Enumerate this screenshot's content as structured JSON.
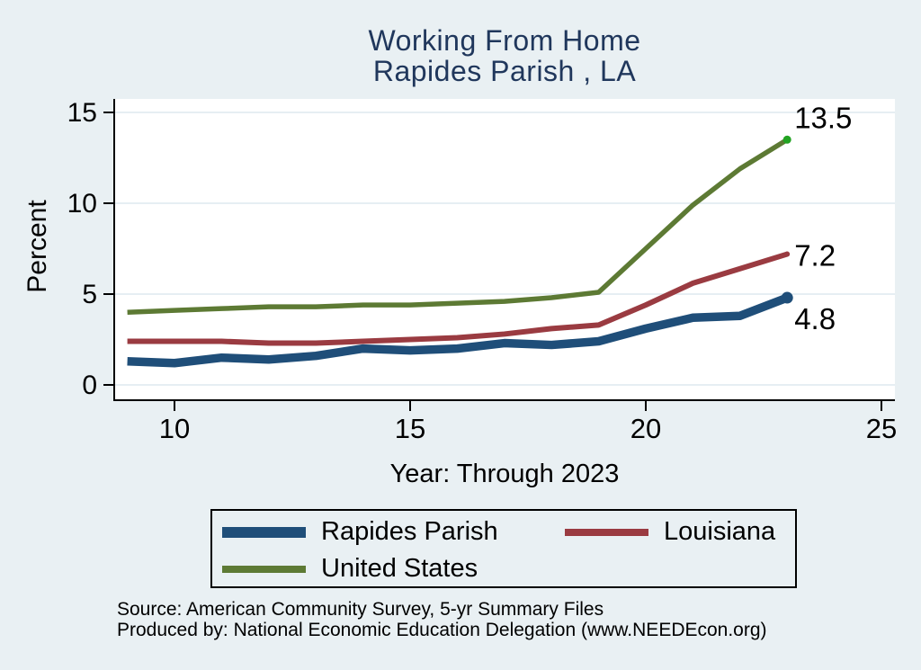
{
  "colors": {
    "page_background": "#e9f0f3",
    "plot_background": "#ffffff",
    "gridline": "#dde9ef",
    "axis": "#000000",
    "title_text": "#20375c",
    "label_text": "#000000"
  },
  "chart_data": {
    "type": "line",
    "title": "Working From Home",
    "subtitle": "Rapides Parish , LA",
    "xlabel": "Year: Through 2023",
    "ylabel": "Percent",
    "x": [
      9,
      10,
      11,
      12,
      13,
      14,
      15,
      16,
      17,
      18,
      19,
      20,
      21,
      22,
      23
    ],
    "xticks": [
      10,
      15,
      20,
      25
    ],
    "yticks": [
      0,
      5,
      10,
      15
    ],
    "xlim": [
      8.7,
      25.3
    ],
    "ylim": [
      0,
      15
    ],
    "grid": "horizontal",
    "legend_position": "bottom",
    "series": [
      {
        "name": "Rapides Parish",
        "color": "#1f4e79",
        "width": 9.5,
        "values": [
          1.3,
          1.2,
          1.5,
          1.4,
          1.6,
          2.0,
          1.9,
          2.0,
          2.3,
          2.2,
          2.4,
          3.1,
          3.7,
          3.8,
          4.8
        ],
        "end_label": "4.8",
        "end_marker": "dot",
        "marker_color": "#1f4e79",
        "marker_radius": 6.5
      },
      {
        "name": "Louisiana",
        "color": "#9a3b41",
        "width": 6,
        "values": [
          2.4,
          2.4,
          2.4,
          2.3,
          2.3,
          2.4,
          2.5,
          2.6,
          2.8,
          3.1,
          3.3,
          4.4,
          5.6,
          6.4,
          7.2
        ],
        "end_label": "7.2",
        "end_marker": "dot",
        "marker_color": "#9a3b41",
        "marker_radius": 3
      },
      {
        "name": "United States",
        "color": "#5d7a34",
        "width": 5.5,
        "values": [
          4.0,
          4.1,
          4.2,
          4.3,
          4.3,
          4.4,
          4.4,
          4.5,
          4.6,
          4.8,
          5.1,
          7.5,
          9.9,
          11.9,
          13.5
        ],
        "end_label": "13.5",
        "end_marker": "dot",
        "marker_color": "#22a322",
        "marker_radius": 4.5
      }
    ]
  },
  "source_lines": [
    "Source: American Community Survey, 5-yr Summary Files",
    "Produced by: National Economic Education Delegation (www.NEEDEcon.org)"
  ]
}
